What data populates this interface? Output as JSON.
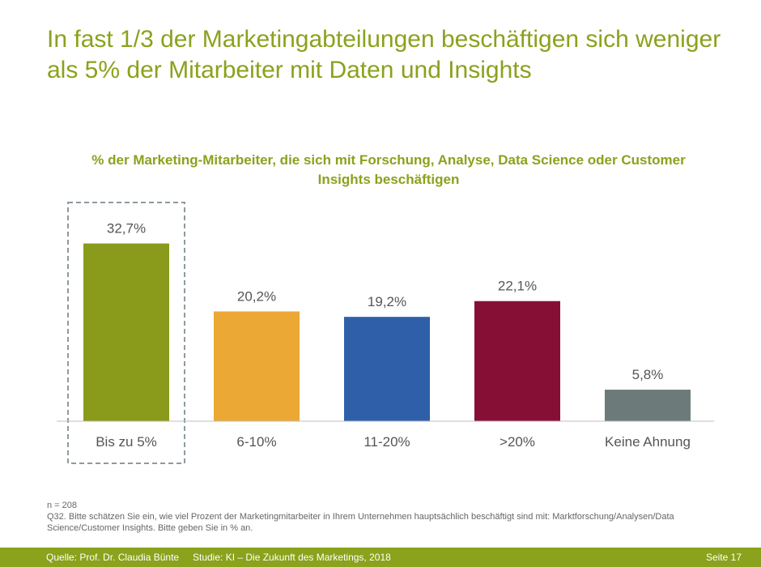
{
  "header": {
    "title": "In fast 1/3 der Marketingabteilungen beschäftigen sich weniger als 5% der Mitarbeiter mit Daten und Insights"
  },
  "chart_data": {
    "type": "bar",
    "title": "% der Marketing-Mitarbeiter, die sich mit  Forschung, Analyse, Data Science oder Customer Insights beschäftigen",
    "categories": [
      "Bis zu 5%",
      "6-10%",
      "11-20%",
      ">20%",
      "Keine Ahnung"
    ],
    "values": [
      32.7,
      20.2,
      19.2,
      22.1,
      5.8
    ],
    "value_labels": [
      "32,7%",
      "20,2%",
      "19,2%",
      "22,1%",
      "5,8%"
    ],
    "colors": [
      "#8a9a1b",
      "#eba834",
      "#2f5fa8",
      "#861035",
      "#6c7a7a"
    ],
    "highlight_index": 0,
    "xlabel": "",
    "ylabel": "",
    "ylim": [
      0,
      40
    ],
    "grid": false,
    "legend": "none"
  },
  "notes": {
    "sample": "n = 208",
    "question": "Q32. Bitte schätzen Sie ein, wie viel Prozent der Marketingmitarbeiter in Ihrem Unternehmen hauptsächlich beschäftigt sind mit: Marktforschung/Analysen/Data Science/Customer Insights. Bitte geben Sie in % an."
  },
  "footer": {
    "source": "Quelle: Prof. Dr. Claudia Bünte",
    "study": "Studie: KI – Die Zukunft des Marketings, 2018",
    "page": "Seite 17"
  }
}
